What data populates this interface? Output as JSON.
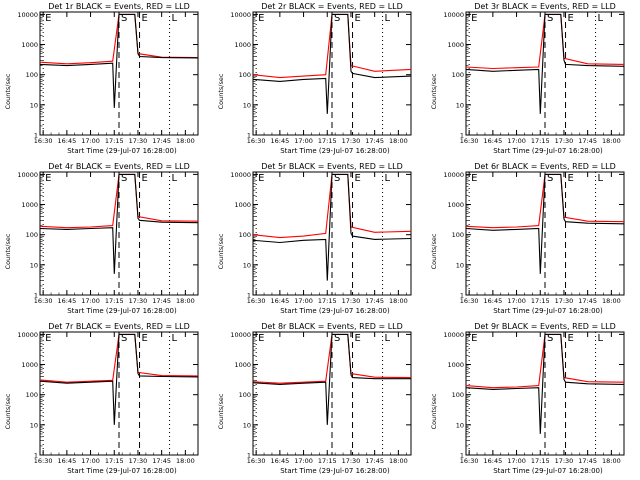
{
  "figure": {
    "colors": {
      "events": "#000000",
      "lld": "#ff0000",
      "background": "#ffffff"
    },
    "marker_labels": [
      "E",
      "S",
      "E",
      "L"
    ]
  },
  "chart_data": [
    {
      "type": "line",
      "title": "Det 1r BLACK = Events, RED = LLD",
      "ylabel": "Counts/sec",
      "xlabel": "Start Time (29-Jul-07 16:28:00)",
      "x_ticks": [
        "16:30",
        "16:45",
        "17:00",
        "17:15",
        "17:30",
        "17:45",
        "18:00"
      ],
      "y_ticks": [
        "1",
        "10",
        "100",
        "1000",
        "10000"
      ],
      "y_scale": "log",
      "ylim": [
        1,
        12000
      ],
      "markers": [
        {
          "label": "E",
          "time": "16:30"
        },
        {
          "label": "S",
          "time": "17:18"
        },
        {
          "label": "E",
          "time": "17:31"
        },
        {
          "label": "L",
          "time": "17:50"
        }
      ],
      "series": [
        {
          "name": "Events",
          "color": "#000000",
          "x": [
            "16:28",
            "16:45",
            "17:00",
            "17:14",
            "17:15",
            "17:18",
            "17:28",
            "17:30",
            "17:31",
            "17:45",
            "18:08"
          ],
          "y": [
            220,
            200,
            220,
            240,
            8,
            10000,
            10000,
            500,
            400,
            370,
            360
          ]
        },
        {
          "name": "LLD",
          "color": "#ff0000",
          "x": [
            "16:28",
            "16:45",
            "17:00",
            "17:14",
            "17:18",
            "17:28",
            "17:30",
            "17:45",
            "18:08"
          ],
          "y": [
            260,
            230,
            250,
            280,
            10000,
            10000,
            500,
            380,
            370
          ]
        }
      ]
    },
    {
      "type": "line",
      "title": "Det 2r BLACK = Events, RED = LLD",
      "ylabel": "Counts/sec",
      "xlabel": "Start Time (29-Jul-07 16:28:00)",
      "x_ticks": [
        "16:30",
        "16:45",
        "17:00",
        "17:15",
        "17:30",
        "17:45",
        "18:00"
      ],
      "y_ticks": [
        "1",
        "10",
        "100",
        "1000",
        "10000"
      ],
      "y_scale": "log",
      "ylim": [
        1,
        12000
      ],
      "markers": [
        {
          "label": "E",
          "time": "16:30"
        },
        {
          "label": "S",
          "time": "17:18"
        },
        {
          "label": "E",
          "time": "17:31"
        },
        {
          "label": "L",
          "time": "17:50"
        }
      ],
      "series": [
        {
          "name": "Events",
          "color": "#000000",
          "x": [
            "16:28",
            "16:45",
            "17:00",
            "17:14",
            "17:15",
            "17:18",
            "17:28",
            "17:30",
            "17:31",
            "17:45",
            "18:08"
          ],
          "y": [
            70,
            60,
            70,
            75,
            5,
            10000,
            10000,
            130,
            110,
            80,
            90
          ]
        },
        {
          "name": "LLD",
          "color": "#ff0000",
          "x": [
            "16:28",
            "16:45",
            "17:00",
            "17:14",
            "17:18",
            "17:28",
            "17:30",
            "17:45",
            "18:08"
          ],
          "y": [
            100,
            80,
            90,
            100,
            10000,
            10000,
            200,
            130,
            150
          ]
        }
      ]
    },
    {
      "type": "line",
      "title": "Det 3r BLACK = Events, RED = LLD",
      "ylabel": "Counts/sec",
      "xlabel": "Start Time (29-Jul-07 16:28:00)",
      "x_ticks": [
        "16:30",
        "16:45",
        "17:00",
        "17:15",
        "17:30",
        "17:45",
        "18:00"
      ],
      "y_ticks": [
        "1",
        "10",
        "100",
        "1000",
        "10000"
      ],
      "y_scale": "log",
      "ylim": [
        1,
        12000
      ],
      "markers": [
        {
          "label": "E",
          "time": "16:30"
        },
        {
          "label": "S",
          "time": "17:18"
        },
        {
          "label": "E",
          "time": "17:31"
        },
        {
          "label": "L",
          "time": "17:50"
        }
      ],
      "series": [
        {
          "name": "Events",
          "color": "#000000",
          "x": [
            "16:28",
            "16:45",
            "17:00",
            "17:14",
            "17:15",
            "17:18",
            "17:28",
            "17:30",
            "17:31",
            "17:45",
            "18:08"
          ],
          "y": [
            150,
            130,
            140,
            150,
            5,
            10000,
            10000,
            300,
            220,
            200,
            190
          ]
        },
        {
          "name": "LLD",
          "color": "#ff0000",
          "x": [
            "16:28",
            "16:45",
            "17:00",
            "17:14",
            "17:18",
            "17:28",
            "17:30",
            "17:45",
            "18:08"
          ],
          "y": [
            180,
            160,
            170,
            180,
            10000,
            10000,
            350,
            230,
            220
          ]
        }
      ]
    },
    {
      "type": "line",
      "title": "Det 4r BLACK = Events, RED = LLD",
      "ylabel": "Counts/sec",
      "xlabel": "Start Time (29-Jul-07 16:28:00)",
      "x_ticks": [
        "16:30",
        "16:45",
        "17:00",
        "17:15",
        "17:30",
        "17:45",
        "18:00"
      ],
      "y_ticks": [
        "1",
        "10",
        "100",
        "1000",
        "10000"
      ],
      "y_scale": "log",
      "ylim": [
        1,
        12000
      ],
      "markers": [
        {
          "label": "E",
          "time": "16:30"
        },
        {
          "label": "S",
          "time": "17:18"
        },
        {
          "label": "E",
          "time": "17:31"
        },
        {
          "label": "L",
          "time": "17:50"
        }
      ],
      "series": [
        {
          "name": "Events",
          "color": "#000000",
          "x": [
            "16:28",
            "16:45",
            "17:00",
            "17:14",
            "17:15",
            "17:18",
            "17:28",
            "17:30",
            "17:31",
            "17:45",
            "18:08"
          ],
          "y": [
            160,
            150,
            160,
            170,
            5,
            10000,
            10000,
            350,
            300,
            260,
            250
          ]
        },
        {
          "name": "LLD",
          "color": "#ff0000",
          "x": [
            "16:28",
            "16:45",
            "17:00",
            "17:14",
            "17:18",
            "17:28",
            "17:30",
            "17:45",
            "18:08"
          ],
          "y": [
            190,
            170,
            180,
            200,
            10000,
            10000,
            400,
            290,
            280
          ]
        }
      ]
    },
    {
      "type": "line",
      "title": "Det 5r BLACK = Events, RED = LLD",
      "ylabel": "Counts/sec",
      "xlabel": "Start Time (29-Jul-07 16:28:00)",
      "x_ticks": [
        "16:30",
        "16:45",
        "17:00",
        "17:15",
        "17:30",
        "17:45",
        "18:00"
      ],
      "y_ticks": [
        "1",
        "10",
        "100",
        "1000",
        "10000"
      ],
      "y_scale": "log",
      "ylim": [
        1,
        12000
      ],
      "markers": [
        {
          "label": "E",
          "time": "16:30"
        },
        {
          "label": "S",
          "time": "17:18"
        },
        {
          "label": "E",
          "time": "17:31"
        },
        {
          "label": "L",
          "time": "17:50"
        }
      ],
      "series": [
        {
          "name": "Events",
          "color": "#000000",
          "x": [
            "16:28",
            "16:45",
            "17:00",
            "17:14",
            "17:15",
            "17:18",
            "17:28",
            "17:30",
            "17:31",
            "17:45",
            "18:08"
          ],
          "y": [
            65,
            55,
            65,
            70,
            3,
            10000,
            10000,
            110,
            90,
            70,
            75
          ]
        },
        {
          "name": "LLD",
          "color": "#ff0000",
          "x": [
            "16:28",
            "16:45",
            "17:00",
            "17:14",
            "17:18",
            "17:28",
            "17:30",
            "17:45",
            "18:08"
          ],
          "y": [
            100,
            80,
            90,
            110,
            10000,
            10000,
            180,
            120,
            130
          ]
        }
      ]
    },
    {
      "type": "line",
      "title": "Det 6r BLACK = Events, RED = LLD",
      "ylabel": "Counts/sec",
      "xlabel": "Start Time (29-Jul-07 16:28:00)",
      "x_ticks": [
        "16:30",
        "16:45",
        "17:00",
        "17:15",
        "17:30",
        "17:45",
        "18:00"
      ],
      "y_ticks": [
        "1",
        "10",
        "100",
        "1000",
        "10000"
      ],
      "y_scale": "log",
      "ylim": [
        1,
        12000
      ],
      "markers": [
        {
          "label": "E",
          "time": "16:30"
        },
        {
          "label": "S",
          "time": "17:18"
        },
        {
          "label": "E",
          "time": "17:31"
        },
        {
          "label": "L",
          "time": "17:50"
        }
      ],
      "series": [
        {
          "name": "Events",
          "color": "#000000",
          "x": [
            "16:28",
            "16:45",
            "17:00",
            "17:14",
            "17:15",
            "17:18",
            "17:28",
            "17:30",
            "17:31",
            "17:45",
            "18:08"
          ],
          "y": [
            160,
            140,
            150,
            160,
            5,
            10000,
            10000,
            330,
            270,
            240,
            230
          ]
        },
        {
          "name": "LLD",
          "color": "#ff0000",
          "x": [
            "16:28",
            "16:45",
            "17:00",
            "17:14",
            "17:18",
            "17:28",
            "17:30",
            "17:45",
            "18:08"
          ],
          "y": [
            190,
            170,
            180,
            200,
            10000,
            10000,
            380,
            280,
            270
          ]
        }
      ]
    },
    {
      "type": "line",
      "title": "Det 7r BLACK = Events, RED = LLD",
      "ylabel": "Counts/sec",
      "xlabel": "Start Time (29-Jul-07 16:28:00)",
      "x_ticks": [
        "16:30",
        "16:45",
        "17:00",
        "17:15",
        "17:30",
        "17:45",
        "18:00"
      ],
      "y_ticks": [
        "1",
        "10",
        "100",
        "1000",
        "10000"
      ],
      "y_scale": "log",
      "ylim": [
        1,
        12000
      ],
      "markers": [
        {
          "label": "E",
          "time": "16:30"
        },
        {
          "label": "S",
          "time": "17:18"
        },
        {
          "label": "E",
          "time": "17:31"
        },
        {
          "label": "L",
          "time": "17:50"
        }
      ],
      "series": [
        {
          "name": "Events",
          "color": "#000000",
          "x": [
            "16:28",
            "16:45",
            "17:00",
            "17:14",
            "17:15",
            "17:18",
            "17:28",
            "17:30",
            "17:31",
            "17:45",
            "18:08"
          ],
          "y": [
            280,
            240,
            260,
            280,
            10,
            10000,
            10000,
            500,
            420,
            400,
            390
          ]
        },
        {
          "name": "LLD",
          "color": "#ff0000",
          "x": [
            "16:28",
            "16:45",
            "17:00",
            "17:14",
            "17:18",
            "17:28",
            "17:30",
            "17:45",
            "18:08"
          ],
          "y": [
            310,
            260,
            280,
            300,
            10000,
            10000,
            550,
            430,
            420
          ]
        }
      ]
    },
    {
      "type": "line",
      "title": "Det 8r BLACK = Events, RED = LLD",
      "ylabel": "Counts/sec",
      "xlabel": "Start Time (29-Jul-07 16:28:00)",
      "x_ticks": [
        "16:30",
        "16:45",
        "17:00",
        "17:15",
        "17:30",
        "17:45",
        "18:00"
      ],
      "y_ticks": [
        "1",
        "10",
        "100",
        "1000",
        "10000"
      ],
      "y_scale": "log",
      "ylim": [
        1,
        12000
      ],
      "markers": [
        {
          "label": "E",
          "time": "16:30"
        },
        {
          "label": "S",
          "time": "17:18"
        },
        {
          "label": "E",
          "time": "17:31"
        },
        {
          "label": "L",
          "time": "17:50"
        }
      ],
      "series": [
        {
          "name": "Events",
          "color": "#000000",
          "x": [
            "16:28",
            "16:45",
            "17:00",
            "17:14",
            "17:15",
            "17:18",
            "17:28",
            "17:30",
            "17:31",
            "17:45",
            "18:08"
          ],
          "y": [
            250,
            220,
            240,
            260,
            10,
            10000,
            10000,
            450,
            370,
            340,
            340
          ]
        },
        {
          "name": "LLD",
          "color": "#ff0000",
          "x": [
            "16:28",
            "16:45",
            "17:00",
            "17:14",
            "17:18",
            "17:28",
            "17:30",
            "17:45",
            "18:08"
          ],
          "y": [
            270,
            240,
            260,
            280,
            10000,
            10000,
            500,
            380,
            370
          ]
        }
      ]
    },
    {
      "type": "line",
      "title": "Det 9r BLACK = Events, RED = LLD",
      "ylabel": "Counts/sec",
      "xlabel": "Start Time (29-Jul-07 16:28:00)",
      "x_ticks": [
        "16:30",
        "16:45",
        "17:00",
        "17:15",
        "17:30",
        "17:45",
        "18:00"
      ],
      "y_ticks": [
        "1",
        "10",
        "100",
        "1000",
        "10000"
      ],
      "y_scale": "log",
      "ylim": [
        1,
        12000
      ],
      "markers": [
        {
          "label": "E",
          "time": "16:30"
        },
        {
          "label": "S",
          "time": "17:18"
        },
        {
          "label": "E",
          "time": "17:31"
        },
        {
          "label": "L",
          "time": "17:50"
        }
      ],
      "series": [
        {
          "name": "Events",
          "color": "#000000",
          "x": [
            "16:28",
            "16:45",
            "17:00",
            "17:14",
            "17:15",
            "17:18",
            "17:28",
            "17:30",
            "17:31",
            "17:45",
            "18:08"
          ],
          "y": [
            170,
            150,
            160,
            170,
            5,
            10000,
            10000,
            320,
            260,
            230,
            220
          ]
        },
        {
          "name": "LLD",
          "color": "#ff0000",
          "x": [
            "16:28",
            "16:45",
            "17:00",
            "17:14",
            "17:18",
            "17:28",
            "17:30",
            "17:45",
            "18:08"
          ],
          "y": [
            200,
            170,
            180,
            200,
            10000,
            10000,
            370,
            270,
            260
          ]
        }
      ]
    }
  ]
}
